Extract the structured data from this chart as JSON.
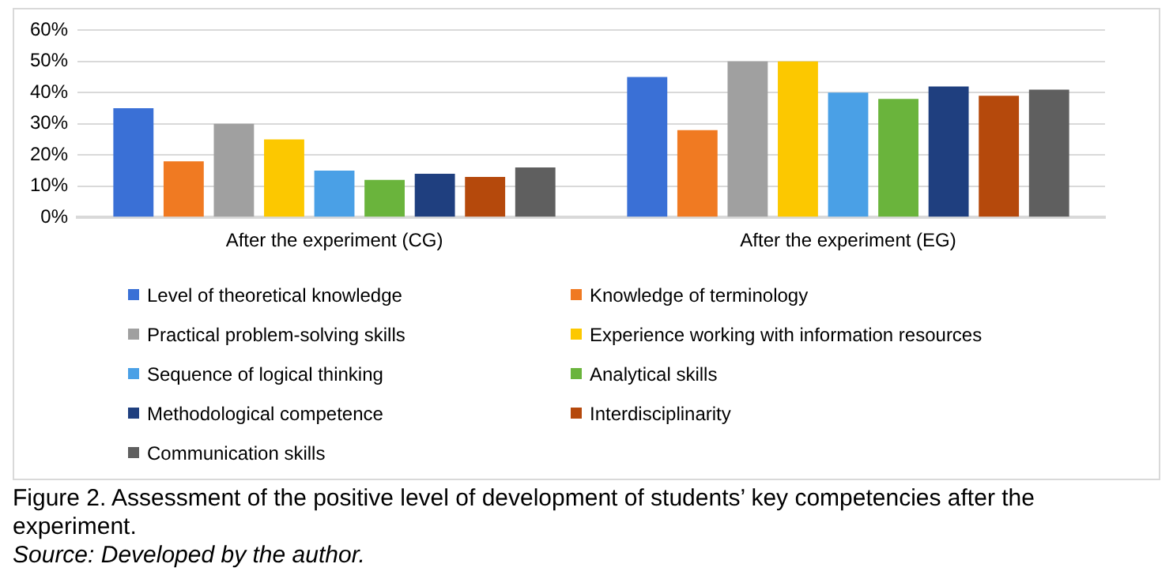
{
  "chart_data": {
    "type": "bar",
    "categories": [
      "After the experiment (CG)",
      "After the experiment (EG)"
    ],
    "series": [
      {
        "name": "Level of theoretical knowledge",
        "color": "#3a70d6",
        "values": [
          35,
          45
        ]
      },
      {
        "name": "Knowledge of terminology",
        "color": "#f07a22",
        "values": [
          18,
          28
        ]
      },
      {
        "name": "Practical problem-solving skills",
        "color": "#a0a0a0",
        "values": [
          30,
          50
        ]
      },
      {
        "name": "Experience working with information resources",
        "color": "#fcc800",
        "values": [
          25,
          50
        ]
      },
      {
        "name": "Sequence of logical thinking",
        "color": "#4aa0e6",
        "values": [
          15,
          40
        ]
      },
      {
        "name": "Analytical skills",
        "color": "#6ab43c",
        "values": [
          12,
          38
        ]
      },
      {
        "name": "Methodological competence",
        "color": "#1f3f7f",
        "values": [
          14,
          42
        ]
      },
      {
        "name": "Interdisciplinarity",
        "color": "#b5490c",
        "values": [
          13,
          39
        ]
      },
      {
        "name": "Communication skills",
        "color": "#5f5f5f",
        "values": [
          16,
          41
        ]
      }
    ],
    "ylim": [
      0,
      60
    ],
    "yticks": [
      {
        "value": 0,
        "label": "0%"
      },
      {
        "value": 10,
        "label": "10%"
      },
      {
        "value": 20,
        "label": "20%"
      },
      {
        "value": 30,
        "label": "30%"
      },
      {
        "value": 40,
        "label": "40%"
      },
      {
        "value": 50,
        "label": "50%"
      },
      {
        "value": 60,
        "label": "60%"
      }
    ],
    "grid": "y",
    "legend": "bottom",
    "annotations": [
      "Figure 2. Assessment of the positive level of development of students’ key competencies after the experiment.",
      "Source: Developed by the author."
    ]
  }
}
